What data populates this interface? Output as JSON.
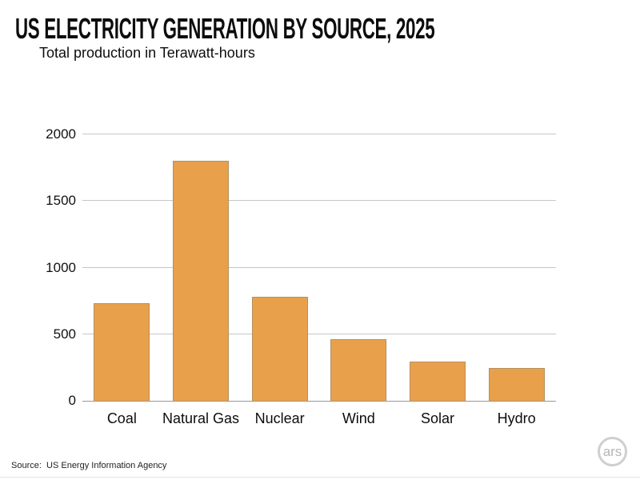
{
  "chart_data": {
    "type": "bar",
    "title": "US ELECTRICITY GENERATION BY SOURCE, 2025",
    "subtitle": "Total production in Terawatt-hours",
    "categories": [
      "Coal",
      "Natural Gas",
      "Nuclear",
      "Wind",
      "Solar",
      "Hydro"
    ],
    "values": [
      730,
      1800,
      780,
      460,
      295,
      245
    ],
    "xlabel": "",
    "ylabel": "",
    "ylim": [
      0,
      2000
    ],
    "yticks": [
      2000,
      1500,
      1000,
      500,
      0
    ],
    "grid": true,
    "legend": "none",
    "bar_color": "#E9A04B",
    "bar_border_color": "#B3905E",
    "gridline_color": "#C6C6C6",
    "axis_line_color": "#979797"
  },
  "footer": {
    "source": "Source:  US Energy Information Agency",
    "logo_text": "ars"
  }
}
